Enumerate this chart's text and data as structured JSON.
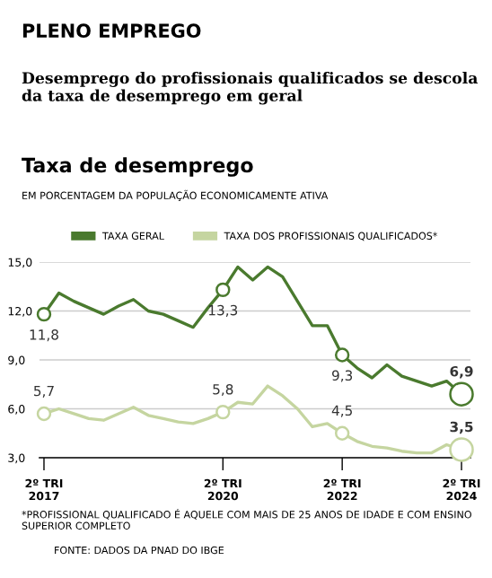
{
  "chart_data": {
    "type": "line",
    "title": "PLENO EMPREGO",
    "subtitle": "Desemprego do profissionais qualificados se descola da taxa de desemprego em geral",
    "annotations": [
      "Taxa de desemprego",
      "EM PORCENTAGEM DA POPULAÇÃO ECONOMICAMENTE ATIVA",
      "*PROFISSIONAL QUALIFICADO É AQUELE COM MAIS DE 25 ANOS DE IDADE E COM ENSINO SUPERIOR COMPLETO",
      "FONTE: DADOS DA PNAD DO IBGE"
    ],
    "categories": [
      "2º TRI\n2017",
      null,
      null,
      null,
      null,
      null,
      null,
      null,
      null,
      null,
      null,
      null,
      "2º TRI\n2020",
      null,
      null,
      null,
      null,
      null,
      null,
      null,
      "2º TRI\n2022",
      null,
      null,
      null,
      null,
      null,
      null,
      null,
      "2º TRI\n2024"
    ],
    "series": [
      {
        "name": "TAXA GERAL",
        "color": "#4a7a2e",
        "values": [
          11.8,
          13.1,
          12.6,
          12.2,
          11.8,
          12.3,
          12.7,
          12.0,
          11.8,
          11.4,
          11.0,
          12.2,
          13.3,
          14.7,
          13.9,
          14.7,
          14.1,
          12.6,
          11.1,
          11.1,
          9.3,
          8.5,
          7.9,
          8.7,
          8.0,
          7.7,
          7.4,
          7.7,
          6.9
        ],
        "value_labels": [
          "11,8",
          null,
          null,
          null,
          null,
          null,
          null,
          null,
          null,
          null,
          null,
          null,
          "13,3",
          null,
          null,
          null,
          null,
          null,
          null,
          null,
          "9,3",
          null,
          null,
          null,
          null,
          null,
          null,
          null,
          "6,9"
        ]
      },
      {
        "name": "TAXA DOS PROFISSIONAIS QUALIFICADOS*",
        "color": "#c5d5a0",
        "values": [
          5.7,
          6.0,
          5.7,
          5.4,
          5.3,
          5.7,
          6.1,
          5.6,
          5.4,
          5.2,
          5.1,
          5.4,
          5.8,
          6.4,
          6.3,
          7.4,
          6.8,
          6.0,
          4.9,
          5.1,
          4.5,
          4.0,
          3.7,
          3.6,
          3.4,
          3.3,
          3.3,
          3.8,
          3.5
        ],
        "value_labels": [
          "5,7",
          null,
          null,
          null,
          null,
          null,
          null,
          null,
          null,
          null,
          null,
          null,
          "5,8",
          null,
          null,
          null,
          null,
          null,
          null,
          null,
          "4,5",
          null,
          null,
          null,
          null,
          null,
          null,
          null,
          "3,5"
        ]
      }
    ],
    "ylim": [
      3,
      15
    ],
    "yticks": [
      {
        "value": 3,
        "label": "3,0"
      },
      {
        "value": 6,
        "label": "6,0"
      },
      {
        "value": 9,
        "label": "9,0"
      },
      {
        "value": 12,
        "label": "12,0"
      },
      {
        "value": 15,
        "label": "15,0"
      }
    ],
    "grid": "y",
    "legend": "top",
    "line_style": "solid"
  }
}
